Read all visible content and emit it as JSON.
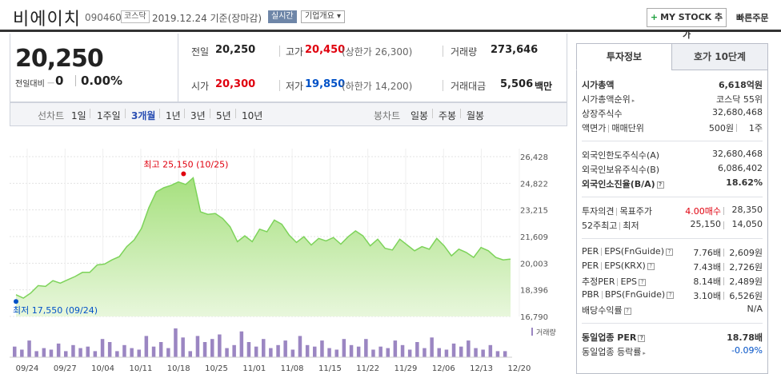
{
  "header": {
    "name": "비에이치",
    "code": "090460",
    "market": "코스닥",
    "date": "2019.12.24  기준(장마감)",
    "realtime": "실시간",
    "overview": "기업개요 ▾",
    "mystock": "MY STOCK 추가",
    "mystock_plus": "+",
    "quick_order": "빠른주문"
  },
  "price": {
    "current": "20,250",
    "change_label": "전일대비",
    "change_symbol": "ㅡ",
    "change": "0",
    "change_pct": "0.00%",
    "prev_label": "전일",
    "prev": "20,250",
    "high_label": "고가",
    "high": "20,450",
    "upper_limit": "(상한가 26,300)",
    "volume_label": "거래량",
    "volume": "273,646",
    "open_label": "시가",
    "open": "20,300",
    "low_label": "저가",
    "low": "19,850",
    "lower_limit": "(하한가 14,200)",
    "amount_label": "거래대금",
    "amount": "5,506",
    "amount_unit": "백만"
  },
  "period_bar": {
    "line_label": "선차트",
    "periods": [
      "1일",
      "1주일",
      "3개월",
      "1년",
      "3년",
      "5년",
      "10년"
    ],
    "active": "3개월",
    "candle_label": "봉차트",
    "candles": [
      "일봉",
      "주봉",
      "월봉"
    ]
  },
  "chart_data": {
    "type": "area",
    "y_ticks": [
      "26,428",
      "24,822",
      "23,215",
      "21,609",
      "20,003",
      "18,396",
      "16,790"
    ],
    "ylim": [
      16790,
      26428
    ],
    "x_ticks": [
      "09/24",
      "09/27",
      "10/04",
      "10/11",
      "10/18",
      "10/25",
      "11/01",
      "11/08",
      "11/15",
      "11/22",
      "11/29",
      "12/06",
      "12/13",
      "12/20"
    ],
    "high_annotation": "최고 25,150 (10/25)",
    "low_annotation": "최저 17,550 (09/24)",
    "volume_label": "거래량",
    "price_values": [
      18100,
      17900,
      18200,
      18650,
      18600,
      18950,
      18800,
      19000,
      19200,
      19450,
      19450,
      19900,
      19950,
      20200,
      20400,
      21000,
      21400,
      22100,
      23350,
      24300,
      24550,
      24700,
      24900,
      24750,
      25150,
      23100,
      22950,
      23000,
      22700,
      22200,
      21300,
      21650,
      21300,
      22050,
      21900,
      22600,
      22350,
      21700,
      21250,
      21600,
      21100,
      21500,
      21350,
      21550,
      21150,
      21600,
      21950,
      21650,
      21050,
      21450,
      20900,
      20800,
      21450,
      21100,
      20750,
      21000,
      20850,
      21500,
      21050,
      20450,
      20850,
      20650,
      20350,
      20950,
      20750,
      20350,
      20200,
      20250
    ],
    "volume_values": [
      0.35,
      0.25,
      0.55,
      0.2,
      0.3,
      0.25,
      0.45,
      0.2,
      0.4,
      0.3,
      0.35,
      0.2,
      0.6,
      0.5,
      0.2,
      0.4,
      0.3,
      0.25,
      0.7,
      0.35,
      0.5,
      0.3,
      0.95,
      0.65,
      0.2,
      0.7,
      0.5,
      0.6,
      0.75,
      0.3,
      0.4,
      0.85,
      0.5,
      0.35,
      0.6,
      0.3,
      0.4,
      0.55,
      0.25,
      0.7,
      0.4,
      0.35,
      0.55,
      0.3,
      0.25,
      0.6,
      0.4,
      0.35,
      0.6,
      0.25,
      0.35,
      0.3,
      0.55,
      0.4,
      0.25,
      0.5,
      0.3,
      0.65,
      0.3,
      0.25,
      0.45,
      0.35,
      0.55,
      0.3,
      0.25,
      0.4,
      0.2,
      0.2
    ]
  },
  "right_panel": {
    "tabs": [
      "투자정보",
      "호가 10단계"
    ],
    "rows": {
      "market_cap": {
        "k": "시가총액",
        "v": "6,618억원"
      },
      "market_cap_rank": {
        "k": "시가총액순위",
        "v": "코스닥 55위"
      },
      "shares": {
        "k": "상장주식수",
        "v": "32,680,468"
      },
      "par": {
        "k": "액면가",
        "k2": "매매단위",
        "v1": "500원",
        "v2": "1주"
      },
      "foreign_limit": {
        "k": "외국인한도주식수(A)",
        "v": "32,680,468"
      },
      "foreign_held": {
        "k": "외국인보유주식수(B)",
        "v": "6,086,402"
      },
      "foreign_ratio": {
        "k": "외국인소진율(B/A)",
        "v": "18.62%"
      },
      "opinion": {
        "k": "투자의견",
        "k2": "목표주가",
        "v1": "4.00매수",
        "v2": "28,350"
      },
      "week52": {
        "k": "52주최고",
        "k2": "최저",
        "v1": "25,150",
        "v2": "14,050"
      },
      "per": {
        "k": "PER",
        "k2": "EPS(FnGuide)",
        "v1": "7.76배",
        "v2": "2,609원"
      },
      "per_krx": {
        "k": "PER",
        "k2": "EPS(KRX)",
        "v1": "7.43배",
        "v2": "2,726원"
      },
      "est_per": {
        "k": "추정PER",
        "k2": "EPS",
        "v1": "8.14배",
        "v2": "2,489원"
      },
      "pbr": {
        "k": "PBR",
        "k2": "BPS(FnGuide)",
        "v1": "3.10배",
        "v2": "6,526원"
      },
      "dividend": {
        "k": "배당수익률",
        "v": "N/A"
      },
      "industry_per": {
        "k": "동일업종 PER",
        "v": "18.78배"
      },
      "industry_rate": {
        "k": "동일업종 등락률",
        "v": "-0.09%"
      }
    },
    "colors": {
      "accent_red": "#e0000e",
      "accent_blue": "#0051c7",
      "line_green": "#7dd35a"
    }
  }
}
